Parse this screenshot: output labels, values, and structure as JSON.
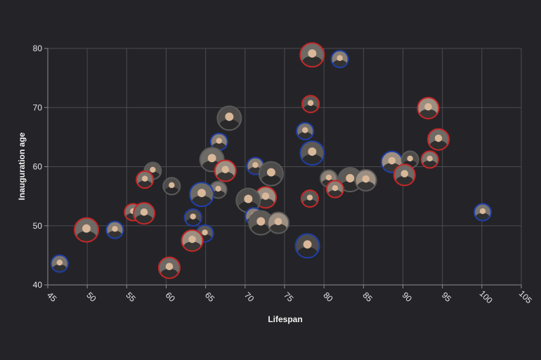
{
  "chart_data": {
    "type": "scatter",
    "title": "",
    "xlabel": "Lifespan",
    "ylabel": "Inauguration age",
    "xlim": [
      45,
      105
    ],
    "ylim": [
      40,
      80
    ],
    "xticks": [
      45,
      50,
      55,
      60,
      65,
      70,
      75,
      80,
      85,
      90,
      95,
      100,
      105
    ],
    "yticks": [
      40,
      50,
      60,
      70,
      80
    ],
    "grid": true,
    "legend": "none",
    "colors": {
      "Republican": "#c62828",
      "Democratic": "#1f3fa8",
      "Other": "#5a5a5a"
    },
    "points": [
      {
        "x": 78.5,
        "y": 78.9,
        "party": "Republican"
      },
      {
        "x": 82,
        "y": 78.2,
        "party": "Democratic"
      },
      {
        "x": 78.3,
        "y": 70.6,
        "party": "Republican"
      },
      {
        "x": 93.2,
        "y": 69.9,
        "party": "Republican"
      },
      {
        "x": 68,
        "y": 68.2,
        "party": "Other"
      },
      {
        "x": 77.6,
        "y": 66,
        "party": "Democratic"
      },
      {
        "x": 94.5,
        "y": 64.6,
        "party": "Republican"
      },
      {
        "x": 66.7,
        "y": 64.2,
        "party": "Democratic"
      },
      {
        "x": 78.5,
        "y": 62.3,
        "party": "Democratic"
      },
      {
        "x": 88.6,
        "y": 60.8,
        "party": "Democratic"
      },
      {
        "x": 90.9,
        "y": 61.2,
        "party": "Other"
      },
      {
        "x": 93.4,
        "y": 61.2,
        "party": "Republican"
      },
      {
        "x": 65.8,
        "y": 61.2,
        "party": "Other"
      },
      {
        "x": 71.3,
        "y": 60.1,
        "party": "Democratic"
      },
      {
        "x": 58.3,
        "y": 59.3,
        "party": "Other"
      },
      {
        "x": 67.5,
        "y": 59.3,
        "party": "Republican"
      },
      {
        "x": 73.3,
        "y": 58.8,
        "party": "Other"
      },
      {
        "x": 57.3,
        "y": 57.8,
        "party": "Republican"
      },
      {
        "x": 90.2,
        "y": 58.6,
        "party": "Republican"
      },
      {
        "x": 80.6,
        "y": 58,
        "party": "Other"
      },
      {
        "x": 83.3,
        "y": 57.8,
        "party": "Other"
      },
      {
        "x": 85.3,
        "y": 57.7,
        "party": "Other"
      },
      {
        "x": 60.7,
        "y": 56.7,
        "party": "Other"
      },
      {
        "x": 66.6,
        "y": 56.1,
        "party": "Other"
      },
      {
        "x": 64.5,
        "y": 55.3,
        "party": "Democratic"
      },
      {
        "x": 81.4,
        "y": 56.2,
        "party": "Republican"
      },
      {
        "x": 78.2,
        "y": 54.6,
        "party": "Republican"
      },
      {
        "x": 72.6,
        "y": 54.8,
        "party": "Republican"
      },
      {
        "x": 70.4,
        "y": 54.3,
        "party": "Other"
      },
      {
        "x": 55.8,
        "y": 52.3,
        "party": "Republican"
      },
      {
        "x": 57.2,
        "y": 52.1,
        "party": "Republican"
      },
      {
        "x": 71.1,
        "y": 51.6,
        "party": "Democratic"
      },
      {
        "x": 72,
        "y": 50.5,
        "party": "Other"
      },
      {
        "x": 74.2,
        "y": 50.5,
        "party": "Other"
      },
      {
        "x": 63.4,
        "y": 51.4,
        "party": "Democratic"
      },
      {
        "x": 100.1,
        "y": 52.3,
        "party": "Democratic"
      },
      {
        "x": 49.9,
        "y": 49.3,
        "party": "Republican"
      },
      {
        "x": 53.5,
        "y": 49.3,
        "party": "Democratic"
      },
      {
        "x": 64.9,
        "y": 48.7,
        "party": "Democratic"
      },
      {
        "x": 63.3,
        "y": 47.5,
        "party": "Republican"
      },
      {
        "x": 77.9,
        "y": 46.6,
        "party": "Democratic"
      },
      {
        "x": 46.5,
        "y": 43.6,
        "party": "Democratic"
      },
      {
        "x": 60.4,
        "y": 42.9,
        "party": "Republican"
      }
    ]
  }
}
